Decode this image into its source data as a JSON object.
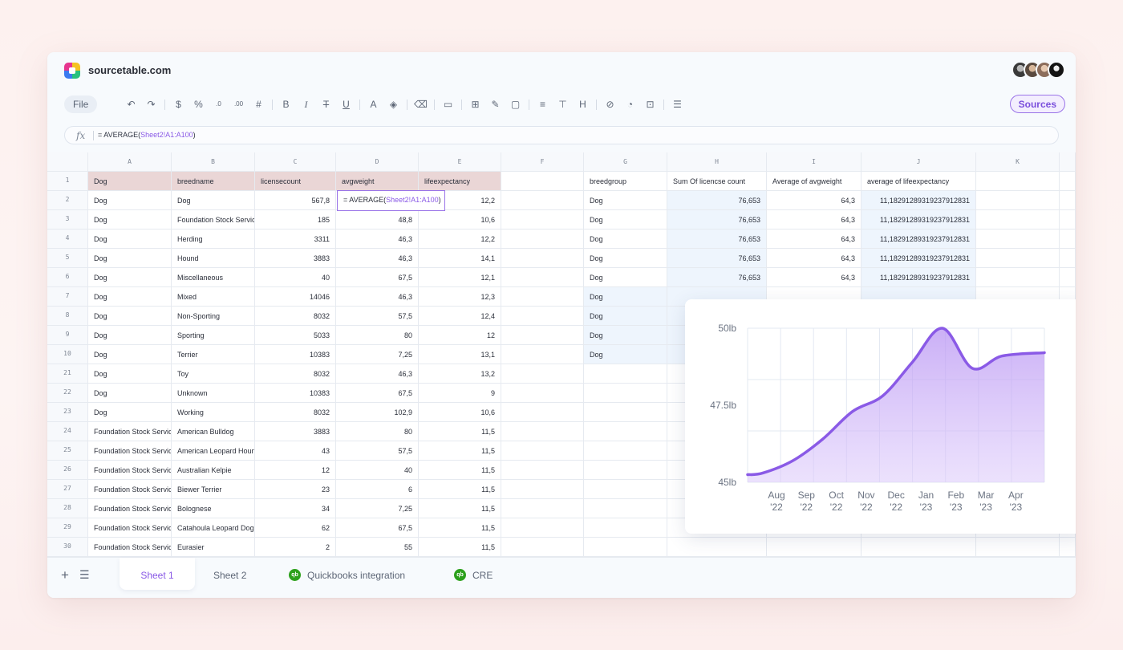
{
  "app": {
    "site": "sourcetable.com"
  },
  "colors": {
    "accent": "#8a5ae6",
    "header_row": "#ead6d6",
    "chart_line": "#8a5ae6"
  },
  "toolbar": {
    "file_label": "File",
    "sources_label": "Sources",
    "icons": [
      "undo-icon",
      "redo-icon",
      "sep",
      "dollar-icon",
      "percent-icon",
      "decrease-decimal-icon",
      "increase-decimal-icon",
      "number-format-icon",
      "sep",
      "bold-icon",
      "italic-icon",
      "strikethrough-icon",
      "underline-icon",
      "sep",
      "text-color-icon",
      "fill-color-icon",
      "sep",
      "clear-format-icon",
      "sep",
      "merge-icon",
      "sep",
      "borders-icon",
      "draw-icon",
      "shape-icon",
      "sep",
      "align-icon",
      "valign-icon",
      "wrap-icon",
      "sep",
      "link-icon",
      "chart-icon",
      "pivot-icon",
      "sep",
      "filter-icon"
    ]
  },
  "formula": {
    "prefix": "= AVERAGE(",
    "ref": "Sheet2!A1:A100",
    "suffix": ")"
  },
  "grid": {
    "columns": [
      "A",
      "B",
      "C",
      "D",
      "E",
      "F",
      "G",
      "H",
      "I",
      "J",
      "K"
    ],
    "left_header": [
      "Dog",
      "breedname",
      "licensecount",
      "avgweight",
      "lifeexpectancy"
    ],
    "left_rows": [
      {
        "row": "1"
      },
      {
        "row": "2",
        "a": "Dog",
        "b": "Dog",
        "c": "567,8",
        "d": "",
        "e": "12,2"
      },
      {
        "row": "3",
        "a": "Dog",
        "b": "Foundation Stock Service",
        "c": "185",
        "d": "48,8",
        "e": "10,6"
      },
      {
        "row": "4",
        "a": "Dog",
        "b": "Herding",
        "c": "3311",
        "d": "46,3",
        "e": "12,2"
      },
      {
        "row": "5",
        "a": "Dog",
        "b": "Hound",
        "c": "3883",
        "d": "46,3",
        "e": "14,1"
      },
      {
        "row": "6",
        "a": "Dog",
        "b": "Miscellaneous",
        "c": "40",
        "d": "67,5",
        "e": "12,1"
      },
      {
        "row": "7",
        "a": "Dog",
        "b": "Mixed",
        "c": "14046",
        "d": "46,3",
        "e": "12,3"
      },
      {
        "row": "8",
        "a": "Dog",
        "b": "Non-Sporting",
        "c": "8032",
        "d": "57,5",
        "e": "12,4"
      },
      {
        "row": "9",
        "a": "Dog",
        "b": "Sporting",
        "c": "5033",
        "d": "80",
        "e": "12"
      },
      {
        "row": "10",
        "a": "Dog",
        "b": "Terrier",
        "c": "10383",
        "d": "7,25",
        "e": "13,1"
      },
      {
        "row": "21",
        "a": "Dog",
        "b": "Toy",
        "c": "8032",
        "d": "46,3",
        "e": "13,2"
      },
      {
        "row": "22",
        "a": "Dog",
        "b": "Unknown",
        "c": "10383",
        "d": "67,5",
        "e": "9"
      },
      {
        "row": "23",
        "a": "Dog",
        "b": "Working",
        "c": "8032",
        "d": "102,9",
        "e": "10,6"
      },
      {
        "row": "24",
        "a": "Foundation Stock Service",
        "b": "American Bulldog",
        "c": "3883",
        "d": "80",
        "e": "11,5"
      },
      {
        "row": "25",
        "a": "Foundation Stock Service",
        "b": "American Leopard Hound",
        "c": "43",
        "d": "57,5",
        "e": "11,5"
      },
      {
        "row": "26",
        "a": "Foundation Stock Service",
        "b": "Australian Kelpie",
        "c": "12",
        "d": "40",
        "e": "11,5"
      },
      {
        "row": "27",
        "a": "Foundation Stock Service",
        "b": "Biewer Terrier",
        "c": "23",
        "d": "6",
        "e": "11,5"
      },
      {
        "row": "28",
        "a": "Foundation Stock Service",
        "b": "Bolognese",
        "c": "34",
        "d": "7,25",
        "e": "11,5"
      },
      {
        "row": "29",
        "a": "Foundation Stock Service",
        "b": "Catahoula Leopard Dog",
        "c": "62",
        "d": "67,5",
        "e": "11,5"
      },
      {
        "row": "30",
        "a": "Foundation Stock Service",
        "b": "Eurasier",
        "c": "2",
        "d": "55",
        "e": "11,5"
      }
    ],
    "active_cell_text": "= AVERAGE(",
    "active_cell_ref": "Sheet2!A1:A100",
    "active_cell_suffix": ")",
    "pivot_header": [
      "breedgroup",
      "Sum Of licencse count",
      "Average of avgweight",
      "average of lifeexpectancy"
    ],
    "pivot_rows": [
      {
        "g": "Dog",
        "h": "76,653",
        "i": "64,3",
        "j": "11,18291289319237912831"
      },
      {
        "g": "Dog",
        "h": "76,653",
        "i": "64,3",
        "j": "11,18291289319237912831"
      },
      {
        "g": "Dog",
        "h": "76,653",
        "i": "64,3",
        "j": "11,18291289319237912831"
      },
      {
        "g": "Dog",
        "h": "76,653",
        "i": "64,3",
        "j": "11,18291289319237912831"
      },
      {
        "g": "Dog",
        "h": "76,653",
        "i": "64,3",
        "j": "11,18291289319237912831"
      },
      {
        "g": "Dog"
      },
      {
        "g": "Dog"
      },
      {
        "g": "Dog"
      },
      {
        "g": "Dog"
      }
    ]
  },
  "chart_data": {
    "type": "area",
    "x": [
      "Aug '22",
      "Sep '22",
      "Oct '22",
      "Nov '22",
      "Dec '22",
      "Jan '23",
      "Feb '23",
      "Mar '23",
      "Apr '23"
    ],
    "x_lines": [
      [
        "Aug",
        "'22"
      ],
      [
        "Sep",
        "'22"
      ],
      [
        "Oct",
        "'22"
      ],
      [
        "Nov",
        "'22"
      ],
      [
        "Dec",
        "'22"
      ],
      [
        "Jan",
        "'23"
      ],
      [
        "Feb",
        "'23"
      ],
      [
        "Mar",
        "'23"
      ],
      [
        "Apr",
        "'23"
      ]
    ],
    "y_ticks": [
      "50lb",
      "47.5lb",
      "45lb"
    ],
    "ylim": [
      45,
      50
    ],
    "series": [
      {
        "values": [
          45.3,
          45.7,
          46.4,
          47.3,
          47.8,
          48.9,
          50.0,
          48.7,
          49.1
        ]
      }
    ],
    "grid": true
  },
  "tabs": {
    "sheet1": "Sheet 1",
    "sheet2": "Sheet 2",
    "qb_integration": "Quickbooks integration",
    "cre": "CRE",
    "qb_badge": "qb"
  }
}
